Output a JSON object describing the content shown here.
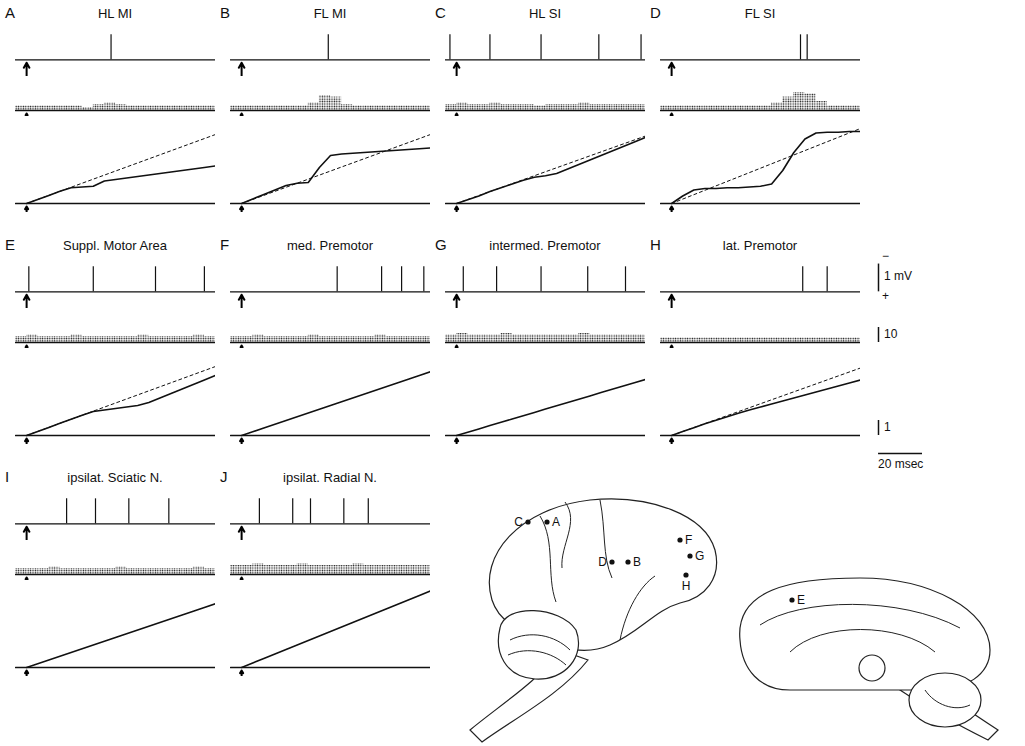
{
  "chart_data": {
    "type": "multi-panel",
    "tick_labels": false,
    "xlim": [
      -5,
      85
    ],
    "stimulus": 0,
    "baseline": 0,
    "spike_height": 0.9,
    "trace_ylim": [
      -0.6,
      1.2
    ],
    "histogram_ylim": [
      -4,
      16
    ],
    "cumulative_ylim": [
      -0.6,
      5.4
    ],
    "bins": [
      -5,
      0,
      5,
      10,
      15,
      20,
      25,
      30,
      35,
      40,
      45,
      50,
      55,
      60,
      65,
      70,
      75,
      80,
      85
    ],
    "cumulative_x": [
      0,
      5,
      10,
      15,
      20,
      25,
      30,
      35,
      40,
      45,
      50,
      55,
      60,
      65,
      70,
      75,
      80,
      85
    ],
    "scale_bars": {
      "trace": {
        "value": 1,
        "label": "1 mV",
        "top": "−",
        "bottom": "+"
      },
      "histogram": {
        "value": 10,
        "label": "10"
      },
      "cumulative": {
        "value": 1,
        "label": "1"
      },
      "time": {
        "value": 20,
        "label": "20 msec"
      }
    },
    "panels": [
      {
        "letter": "A",
        "title": "HL MI",
        "spikes": [
          38
        ],
        "counts": [
          3,
          3,
          3,
          3,
          3,
          3,
          2,
          4,
          5,
          4,
          3,
          3,
          3,
          3,
          3,
          3,
          3,
          3
        ],
        "cumulative": [
          0,
          0.27,
          0.54,
          0.81,
          1.05,
          1.1,
          1.15,
          1.5,
          1.6,
          1.7,
          1.8,
          1.9,
          2.0,
          2.1,
          2.2,
          2.3,
          2.4,
          2.5
        ],
        "trend": {
          "values": [
            0,
            4.6
          ],
          "line_style": "dashed"
        }
      },
      {
        "letter": "B",
        "title": "FL MI",
        "spikes": [
          39
        ],
        "counts": [
          3,
          3,
          3,
          3,
          3,
          3,
          3,
          5,
          10,
          9,
          4,
          3,
          3,
          3,
          3,
          3,
          3,
          3
        ],
        "cumulative": [
          0,
          0.3,
          0.6,
          0.9,
          1.2,
          1.35,
          1.4,
          2.4,
          3.2,
          3.3,
          3.35,
          3.4,
          3.45,
          3.5,
          3.55,
          3.6,
          3.65,
          3.7
        ],
        "trend": {
          "values": [
            0,
            4.6
          ],
          "line_style": "dashed"
        }
      },
      {
        "letter": "C",
        "title": "HL SI",
        "spikes": [
          -3,
          15,
          38,
          64,
          83
        ],
        "counts": [
          4,
          5,
          4,
          4,
          5,
          4,
          4,
          4,
          3,
          4,
          4,
          4,
          5,
          4,
          4,
          4,
          4,
          4
        ],
        "cumulative": [
          0,
          0.25,
          0.5,
          0.8,
          1.05,
          1.3,
          1.55,
          1.75,
          1.85,
          2.0,
          2.3,
          2.6,
          2.9,
          3.2,
          3.5,
          3.8,
          4.1,
          4.4
        ],
        "trend": {
          "values": [
            0,
            4.5
          ],
          "line_style": "dashed"
        }
      },
      {
        "letter": "D",
        "title": "FL SI",
        "spikes": [
          58,
          61
        ],
        "counts": [
          3,
          3,
          3,
          3,
          3,
          3,
          3,
          3,
          3,
          3,
          5,
          9,
          12,
          11,
          6,
          3,
          3,
          3
        ],
        "cumulative": [
          0,
          0.5,
          0.9,
          1.0,
          1.0,
          1.05,
          1.05,
          1.1,
          1.15,
          1.3,
          2.2,
          3.4,
          4.3,
          4.7,
          4.75,
          4.75,
          4.8,
          4.8
        ],
        "trend": {
          "values": [
            0,
            5.0
          ],
          "line_style": "dashed"
        }
      },
      {
        "letter": "E",
        "title": "Suppl. Motor Area",
        "spikes": [
          1,
          30,
          58,
          80
        ],
        "counts": [
          4,
          5,
          4,
          4,
          4,
          5,
          4,
          4,
          4,
          4,
          4,
          5,
          4,
          4,
          4,
          4,
          5,
          4
        ],
        "cumulative": [
          0,
          0.27,
          0.54,
          0.81,
          1.08,
          1.35,
          1.6,
          1.7,
          1.8,
          1.9,
          2.0,
          2.2,
          2.5,
          2.8,
          3.1,
          3.4,
          3.7,
          4.0
        ],
        "trend": {
          "values": [
            0,
            4.6
          ],
          "line_style": "dashed"
        }
      },
      {
        "letter": "F",
        "title": "med. Premotor",
        "spikes": [
          43,
          63,
          72,
          82
        ],
        "counts": [
          4,
          4,
          5,
          4,
          4,
          4,
          4,
          5,
          4,
          4,
          4,
          4,
          4,
          5,
          4,
          4,
          4,
          4
        ],
        "cumulative": [
          0,
          0.25,
          0.5,
          0.75,
          1.0,
          1.25,
          1.5,
          1.75,
          2.0,
          2.25,
          2.5,
          2.75,
          3.0,
          3.25,
          3.5,
          3.75,
          4.0,
          4.25
        ]
      },
      {
        "letter": "G",
        "title": "intermed. Premotor",
        "spikes": [
          3,
          18,
          38,
          59,
          76
        ],
        "counts": [
          5,
          6,
          5,
          5,
          5,
          6,
          5,
          5,
          5,
          5,
          5,
          5,
          6,
          5,
          5,
          5,
          5,
          5
        ],
        "cumulative": [
          0,
          0.22,
          0.44,
          0.66,
          0.88,
          1.1,
          1.32,
          1.54,
          1.76,
          1.98,
          2.2,
          2.42,
          2.64,
          2.86,
          3.08,
          3.3,
          3.52,
          3.74
        ]
      },
      {
        "letter": "H",
        "title": "lat. Premotor",
        "spikes": [
          59,
          70
        ],
        "counts": [
          3,
          3,
          3,
          3,
          3,
          3,
          3,
          3,
          3,
          3,
          3,
          3,
          3,
          3,
          3,
          3,
          3,
          3
        ],
        "cumulative": [
          0,
          0.26,
          0.52,
          0.78,
          1.02,
          1.25,
          1.48,
          1.7,
          1.9,
          2.1,
          2.3,
          2.5,
          2.7,
          2.9,
          3.1,
          3.3,
          3.5,
          3.7
        ],
        "trend": {
          "values": [
            0,
            4.5
          ],
          "line_style": "dashed"
        }
      },
      {
        "letter": "I",
        "title": "ipsilat. Sciatic N.",
        "spikes": [
          18,
          31,
          46,
          64
        ],
        "counts": [
          4,
          4,
          4,
          5,
          4,
          4,
          4,
          4,
          4,
          5,
          4,
          4,
          4,
          4,
          4,
          4,
          5,
          4
        ],
        "cumulative": [
          0,
          0.25,
          0.5,
          0.75,
          1.0,
          1.25,
          1.5,
          1.75,
          2.0,
          2.25,
          2.5,
          2.75,
          3.0,
          3.25,
          3.5,
          3.75,
          4.0,
          4.25
        ]
      },
      {
        "letter": "J",
        "title": "ipsilat. Radial N.",
        "spikes": [
          8,
          23,
          31,
          46,
          57
        ],
        "counts": [
          6,
          6,
          7,
          6,
          6,
          6,
          7,
          6,
          6,
          6,
          6,
          7,
          6,
          6,
          6,
          6,
          6,
          6
        ],
        "cumulative": [
          0,
          0.3,
          0.6,
          0.9,
          1.2,
          1.5,
          1.8,
          2.1,
          2.4,
          2.7,
          3.0,
          3.3,
          3.6,
          3.9,
          4.2,
          4.5,
          4.8,
          5.1
        ]
      }
    ],
    "brain": {
      "lateral_sites": [
        "C",
        "A",
        "D",
        "B",
        "F",
        "G",
        "H"
      ],
      "medial_sites": [
        "E"
      ]
    }
  }
}
